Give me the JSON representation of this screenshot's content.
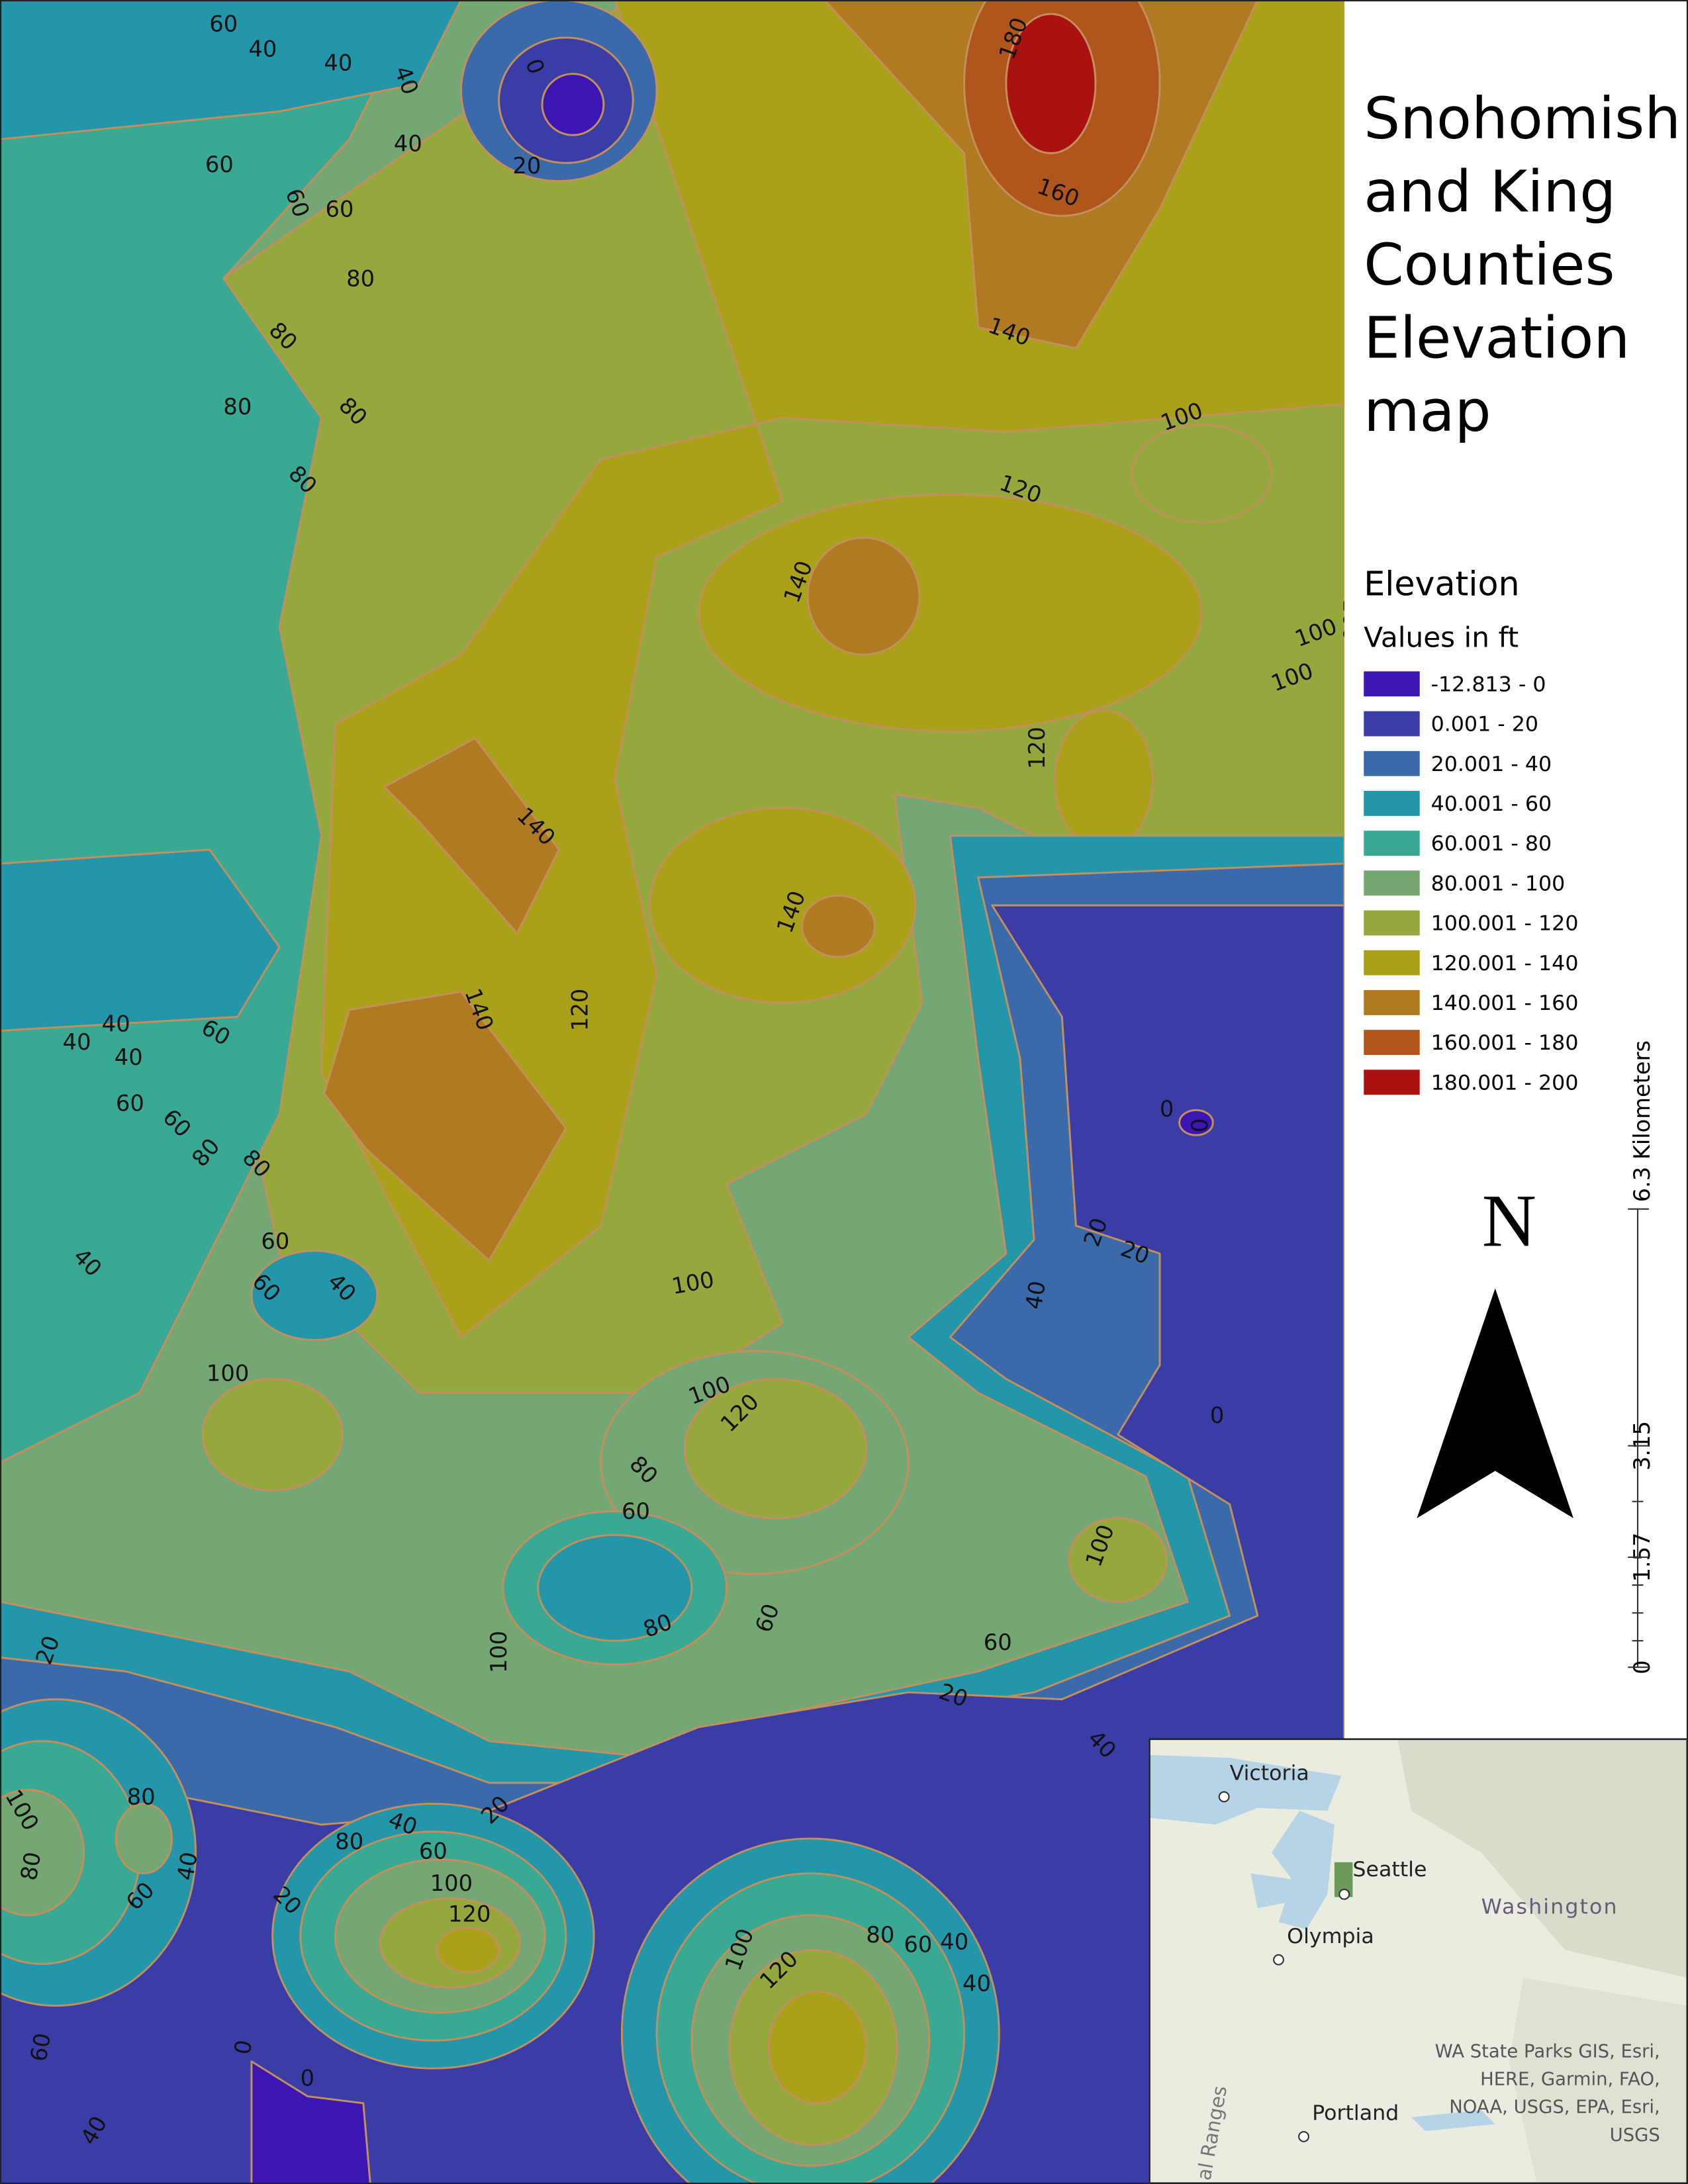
{
  "title_lines": [
    "Snohomish",
    "and King",
    "Counties",
    "Elevation",
    "map"
  ],
  "legend": {
    "title": "Elevation",
    "subtitle": "Values in ft",
    "items": [
      {
        "label": "-12.813 - 0",
        "color": "#3b16b2"
      },
      {
        "label": "0.001 - 20",
        "color": "#3a3da6"
      },
      {
        "label": "20.001 - 40",
        "color": "#3a6aaa"
      },
      {
        "label": "40.001 - 60",
        "color": "#2496aa"
      },
      {
        "label": "60.001 - 80",
        "color": "#3aa994"
      },
      {
        "label": "80.001 - 100",
        "color": "#74a774"
      },
      {
        "label": "100.001 - 120",
        "color": "#95a83d"
      },
      {
        "label": "120.001 - 140",
        "color": "#aaa11a"
      },
      {
        "label": "140.001 - 160",
        "color": "#b07a22"
      },
      {
        "label": "160.001 - 180",
        "color": "#b0561c"
      },
      {
        "label": "180.001 - 200",
        "color": "#aa1212"
      }
    ]
  },
  "contour_labels": [
    60,
    40,
    40,
    40,
    0,
    40,
    20,
    60,
    60,
    60,
    80,
    80,
    80,
    80,
    80,
    180,
    160,
    140,
    100,
    120,
    140,
    100,
    100,
    100,
    120,
    140,
    140,
    140,
    120,
    40,
    40,
    40,
    60,
    60,
    60,
    80,
    80,
    0,
    0,
    60,
    60,
    40,
    40,
    20,
    20,
    40,
    100,
    100,
    100,
    120,
    0,
    80,
    60,
    100,
    100,
    80,
    60,
    60,
    20,
    20,
    20,
    40,
    40,
    60,
    80,
    100,
    120,
    80,
    100,
    80,
    60,
    40,
    20,
    100,
    120,
    80,
    60,
    40,
    40,
    0,
    0,
    60,
    40
  ],
  "north": "N",
  "scale_bar": {
    "labels": [
      "6.3 Kilometers",
      3.15,
      1.57,
      0
    ]
  },
  "inset": {
    "places": [
      "Victoria",
      "Seattle",
      "Olympia",
      "Portland",
      "Washington",
      "al Ranges"
    ],
    "attribution": [
      "WA State Parks GIS, Esri,",
      "HERE, Garmin, FAO,",
      "NOAA, USGS, EPA, Esri,",
      "USGS"
    ]
  }
}
